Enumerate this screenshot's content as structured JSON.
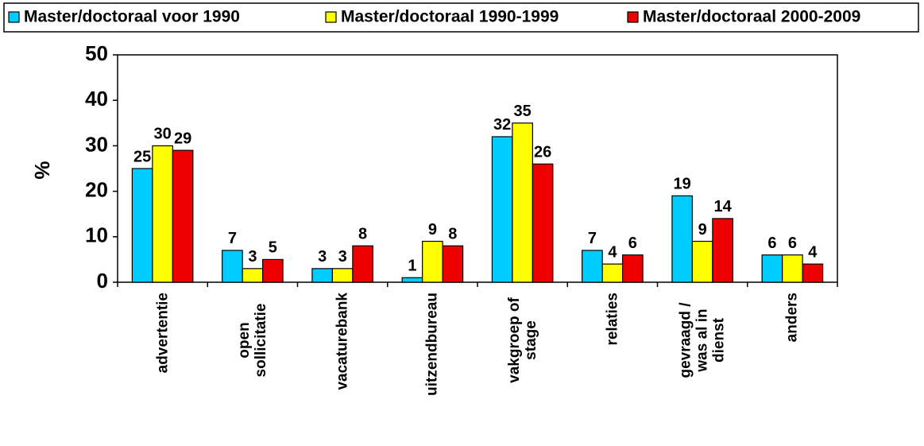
{
  "chart_data": {
    "type": "bar",
    "y_label": "%",
    "categories": [
      "advertentie",
      "open sollicitatie",
      "vacaturebank",
      "uitzendbureau",
      "vakgroep of stage",
      "relaties",
      "gevraagd / was al in dienst",
      "anders"
    ],
    "series": [
      {
        "name": "Master/doctoraal voor 1990",
        "color": "#00ccff",
        "values": [
          25,
          7,
          3,
          1,
          32,
          7,
          19,
          6
        ]
      },
      {
        "name": "Master/doctoraal 1990-1999",
        "color": "#ffff00",
        "values": [
          30,
          3,
          3,
          9,
          35,
          4,
          9,
          6
        ]
      },
      {
        "name": "Master/doctoraal 2000-2009",
        "color": "#ee0000",
        "values": [
          29,
          5,
          8,
          8,
          26,
          6,
          14,
          4
        ]
      }
    ],
    "ylim": [
      0,
      50
    ],
    "yticks": [
      0,
      10,
      20,
      30,
      40,
      50
    ],
    "grid": false,
    "legend": "top"
  }
}
